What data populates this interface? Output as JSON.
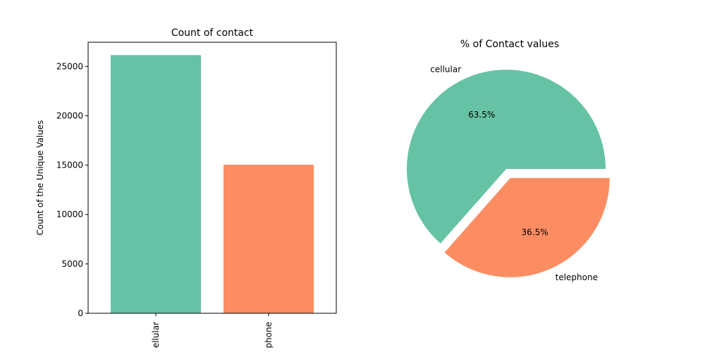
{
  "chart_data": [
    {
      "type": "bar",
      "title": "Count of contact",
      "xlabel": "",
      "ylabel": "Count of the Unique Values",
      "categories": [
        "cellular",
        "telephone"
      ],
      "category_tick_labels": [
        "ellular",
        "phone"
      ],
      "values": [
        26144,
        15044
      ],
      "ylim": [
        0,
        27450
      ],
      "yticks": [
        0,
        5000,
        10000,
        15000,
        20000,
        25000
      ],
      "ytick_labels": [
        "0",
        "5000",
        "10000",
        "15000",
        "20000",
        "25000"
      ],
      "colors": [
        "#66c2a5",
        "#fc8d62"
      ],
      "grid": false
    },
    {
      "type": "pie",
      "title": "% of Contact values",
      "labels": [
        "cellular",
        "telephone"
      ],
      "values": [
        63.5,
        36.5
      ],
      "pct_labels": [
        "63.5%",
        "36.5%"
      ],
      "explode": [
        0,
        0.1
      ],
      "colors": [
        "#66c2a5",
        "#fc8d62"
      ]
    }
  ]
}
